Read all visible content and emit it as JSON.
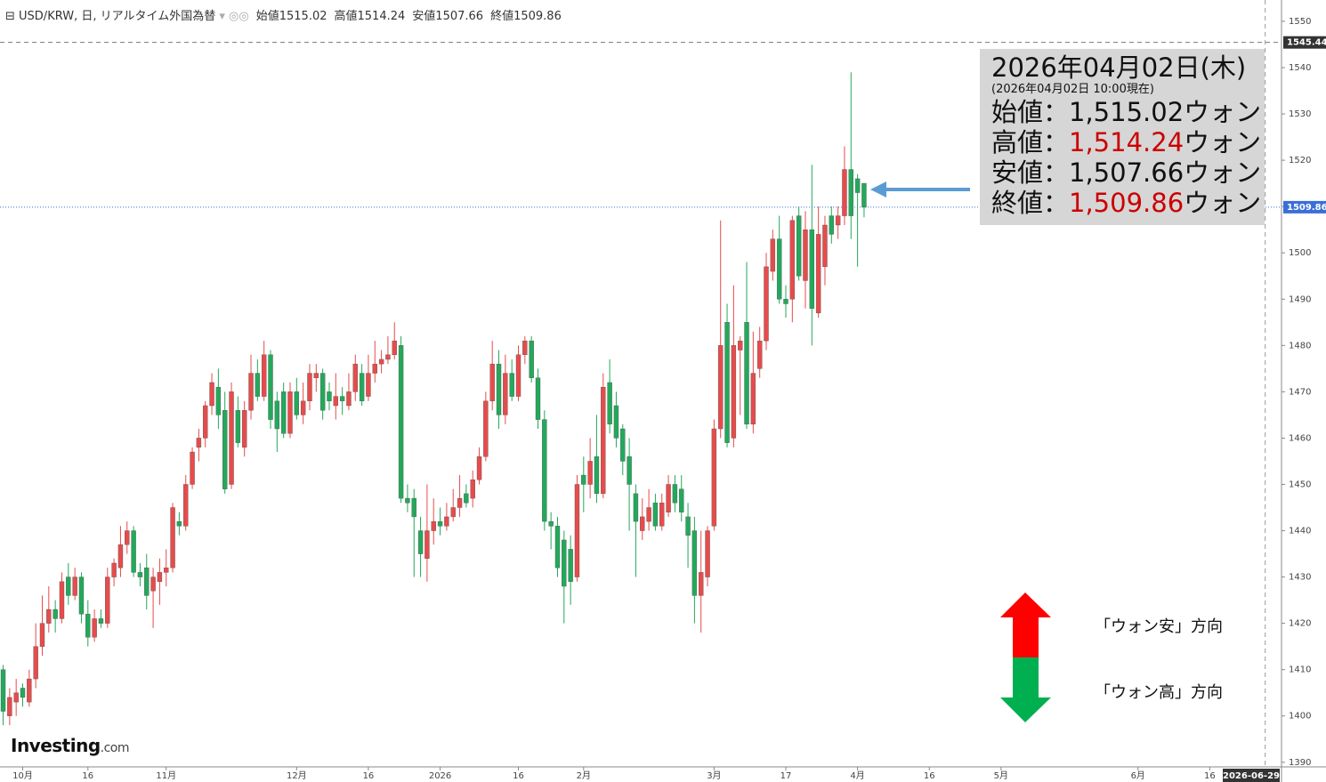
{
  "chart_data": {
    "type": "candlestick",
    "title": "USD/KRW, 日, リアルタイム外国為替",
    "header": [
      {
        "label": "始値",
        "value": "1515.02"
      },
      {
        "label": "高値",
        "value": "1514.24"
      },
      {
        "label": "安値",
        "value": "1507.66"
      },
      {
        "label": "終値",
        "value": "1509.86"
      }
    ],
    "up_color": "#e84b4b",
    "down_color": "#22a95b",
    "candles": {
      "open": [
        1410,
        1400,
        1403,
        1406,
        1403,
        1408,
        1415,
        1420,
        1423,
        1421,
        1430,
        1426,
        1430,
        1422,
        1417,
        1421,
        1420,
        1430,
        1432,
        1437,
        1440,
        1431,
        1432,
        1427,
        1429,
        1431,
        1432,
        1442,
        1441,
        1450,
        1458,
        1460,
        1467,
        1471,
        1466,
        1450,
        1466,
        1458,
        1466,
        1474,
        1469,
        1478,
        1468,
        1470,
        1461,
        1470,
        1465,
        1468,
        1473,
        1474,
        1470,
        1467,
        1469,
        1467,
        1470,
        1474,
        1469,
        1474,
        1476,
        1477,
        1478,
        1480,
        1447,
        1447,
        1440,
        1434,
        1440,
        1442,
        1441,
        1443,
        1445,
        1448,
        1447,
        1451,
        1456,
        1468,
        1476,
        1465,
        1474,
        1469,
        1478,
        1481,
        1473,
        1464,
        1442,
        1441,
        1438,
        1436,
        1430,
        1452,
        1450,
        1456,
        1448,
        1472,
        1467,
        1462,
        1456,
        1448,
        1440,
        1442,
        1446,
        1441,
        1444,
        1450,
        1449,
        1443,
        1440,
        1426,
        1430,
        1441,
        1462,
        1485,
        1460,
        1479,
        1485,
        1463,
        1475,
        1481,
        1496,
        1503,
        1490,
        1490,
        1508,
        1494,
        1505,
        1487,
        1497,
        1508,
        1506,
        1508,
        1518,
        1516,
        1515.02
      ],
      "high": [
        1411,
        1406,
        1408,
        1407,
        1410,
        1420,
        1426,
        1428,
        1425,
        1431,
        1433,
        1432,
        1431,
        1425,
        1423,
        1423,
        1432,
        1434,
        1441,
        1442,
        1441,
        1433,
        1435,
        1432,
        1434,
        1436,
        1446,
        1444,
        1452,
        1458,
        1462,
        1468,
        1474,
        1475,
        1470,
        1472,
        1469,
        1468,
        1478,
        1477,
        1481,
        1479,
        1470,
        1472,
        1472,
        1473,
        1472,
        1476,
        1476,
        1475,
        1472,
        1474,
        1471,
        1474,
        1478,
        1476,
        1478,
        1481,
        1479,
        1482,
        1485,
        1482,
        1450,
        1449,
        1443,
        1450,
        1447,
        1445,
        1446,
        1449,
        1452,
        1450,
        1453,
        1458,
        1470,
        1481,
        1479,
        1478,
        1477,
        1480,
        1482,
        1482,
        1475,
        1466,
        1444,
        1443,
        1440,
        1439,
        1452,
        1456,
        1460,
        1465,
        1474,
        1477,
        1470,
        1463,
        1460,
        1450,
        1447,
        1449,
        1448,
        1448,
        1452,
        1452,
        1452,
        1446,
        1443,
        1440,
        1441,
        1464,
        1507,
        1489,
        1493,
        1482,
        1498,
        1483,
        1484,
        1500,
        1505,
        1508,
        1493,
        1508,
        1510,
        1509,
        1519,
        1510,
        1508,
        1510,
        1510,
        1523,
        1539,
        1517,
        1514.24
      ],
      "low": [
        1398,
        1398,
        1400,
        1402,
        1402,
        1406,
        1413,
        1418,
        1418,
        1420,
        1424,
        1425,
        1420,
        1415,
        1416,
        1419,
        1419,
        1428,
        1430,
        1435,
        1430,
        1428,
        1423,
        1419,
        1424,
        1428,
        1431,
        1439,
        1440,
        1449,
        1455,
        1458,
        1465,
        1462,
        1448,
        1449,
        1458,
        1456,
        1464,
        1468,
        1468,
        1462,
        1457,
        1460,
        1460,
        1464,
        1463,
        1466,
        1470,
        1464,
        1466,
        1464,
        1465,
        1466,
        1468,
        1467,
        1468,
        1472,
        1474,
        1476,
        1477,
        1446,
        1444,
        1430,
        1430,
        1429,
        1437,
        1439,
        1440,
        1442,
        1443,
        1445,
        1445,
        1450,
        1455,
        1466,
        1462,
        1463,
        1468,
        1468,
        1476,
        1472,
        1462,
        1440,
        1436,
        1430,
        1420,
        1424,
        1429,
        1444,
        1447,
        1446,
        1447,
        1461,
        1458,
        1452,
        1440,
        1430,
        1438,
        1440,
        1440,
        1440,
        1443,
        1444,
        1442,
        1432,
        1420,
        1418,
        1428,
        1440,
        1460,
        1458,
        1458,
        1465,
        1462,
        1461,
        1473,
        1479,
        1494,
        1489,
        1486,
        1485,
        1494,
        1488,
        1480,
        1486,
        1493,
        1502,
        1503,
        1506,
        1503,
        1497,
        1507.66
      ],
      "close": [
        1401,
        1404,
        1405,
        1404,
        1408,
        1415,
        1420,
        1423,
        1421,
        1429,
        1426,
        1430,
        1422,
        1417,
        1421,
        1420,
        1430,
        1433,
        1437,
        1440,
        1431,
        1430,
        1426,
        1430,
        1431,
        1432,
        1445,
        1441,
        1450,
        1457,
        1460,
        1467,
        1472,
        1465,
        1449,
        1470,
        1459,
        1466,
        1474,
        1469,
        1478,
        1464,
        1462,
        1461,
        1470,
        1465,
        1468,
        1474,
        1474,
        1466,
        1468,
        1469,
        1468,
        1470,
        1476,
        1468,
        1474,
        1476,
        1477,
        1478,
        1481,
        1447,
        1446,
        1443,
        1435,
        1440,
        1442,
        1441,
        1443,
        1445,
        1447,
        1446,
        1451,
        1456,
        1468,
        1476,
        1465,
        1474,
        1469,
        1478,
        1481,
        1473,
        1464,
        1442,
        1441,
        1432,
        1428,
        1429,
        1450,
        1450,
        1455,
        1448,
        1471,
        1463,
        1460,
        1455,
        1450,
        1442,
        1443,
        1445,
        1441,
        1446,
        1450,
        1446,
        1444,
        1439,
        1426,
        1431,
        1440,
        1462,
        1480,
        1459,
        1480,
        1481,
        1463,
        1474,
        1481,
        1497,
        1503,
        1490,
        1489,
        1507,
        1495,
        1505,
        1488,
        1504,
        1506,
        1504,
        1508,
        1518,
        1508,
        1513,
        1509.86
      ]
    },
    "xlim": [
      -0.48,
      196
    ],
    "ylim": [
      1389,
      1554.6
    ],
    "yticks": [
      1390,
      1400,
      1410,
      1420,
      1430,
      1440,
      1450,
      1460,
      1470,
      1480,
      1490,
      1500,
      1510,
      1520,
      1530,
      1540,
      1550
    ],
    "xticks": [
      {
        "value": 3,
        "label": "10月"
      },
      {
        "value": 13,
        "label": "16"
      },
      {
        "value": 25,
        "label": "11月"
      },
      {
        "value": 45,
        "label": "12月"
      },
      {
        "value": 56,
        "label": "16"
      },
      {
        "value": 67,
        "label": "2026"
      },
      {
        "value": 79,
        "label": "16"
      },
      {
        "value": 89,
        "label": "2月"
      },
      {
        "value": 109,
        "label": "3月"
      },
      {
        "value": 120,
        "label": "17"
      },
      {
        "value": 131,
        "label": "4月"
      },
      {
        "value": 142,
        "label": "16"
      },
      {
        "value": 153,
        "label": "5月"
      },
      {
        "value": 174,
        "label": "6月"
      },
      {
        "value": 185,
        "label": "16"
      }
    ],
    "cursor_x": {
      "value": 193.5,
      "label": "2026-06-29"
    },
    "cursor_y": {
      "value": 1545.44,
      "label": "1545.44"
    },
    "last_price": {
      "value": 1509.86,
      "label": "1509.86"
    },
    "info_box": {
      "date": "2026年04月02日(木)",
      "as_of": "(2026年04月02日 10:00現在)",
      "rows": [
        {
          "label": "始値：",
          "value": "1,515.02",
          "unit": "ウォン",
          "color": "#111111"
        },
        {
          "label": "高値：",
          "value": "1,514.24",
          "unit": "ウォン",
          "color": "#cc0000"
        },
        {
          "label": "安値：",
          "value": "1,507.66",
          "unit": "ウォン",
          "color": "#111111"
        },
        {
          "label": "終値：",
          "value": "1,509.86",
          "unit": "ウォン",
          "color": "#cc0000"
        }
      ]
    },
    "legend": {
      "up": "「ウォン安」方向",
      "down": "「ウォン高」方向"
    },
    "logo": {
      "brand": "Investing",
      "suffix": ".com"
    }
  }
}
